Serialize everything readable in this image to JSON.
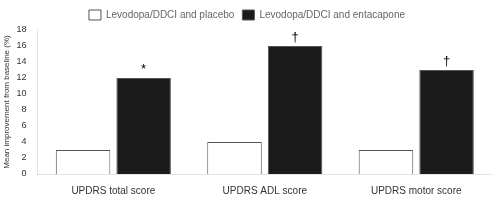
{
  "chart_data": {
    "type": "bar",
    "categories": [
      "UPDRS total score",
      "UPDRS ADL score",
      "UPDRS motor score"
    ],
    "series": [
      {
        "name": "Levodopa/DDCI and placebo",
        "color": "#ffffff",
        "values": [
          3.0,
          4.0,
          3.0
        ]
      },
      {
        "name": "Levodopa/DDCI and entacapone",
        "color": "#1a1a1a",
        "values": [
          12.0,
          16.0,
          13.0
        ]
      }
    ],
    "ylabel": "Mean improvement from baseline (%)",
    "ylim": [
      0,
      18
    ],
    "yticks": [
      0,
      2,
      4,
      6,
      8,
      10,
      12,
      14,
      16,
      18
    ],
    "annotations": [
      {
        "text": "*",
        "category": "UPDRS total score",
        "series": "Levodopa/DDCI and entacapone",
        "y": 12.0
      },
      {
        "text": "†",
        "category": "UPDRS ADL score",
        "series": "Levodopa/DDCI and entacapone",
        "y": 16.0
      },
      {
        "text": "†",
        "category": "UPDRS motor score",
        "series": "Levodopa/DDCI and entacapone",
        "y": 13.0
      }
    ],
    "grid": false,
    "legend": "top"
  }
}
